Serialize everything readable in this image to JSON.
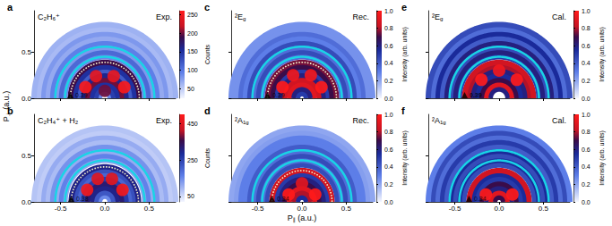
{
  "chart_data": [
    {
      "type": "ring_map",
      "panel": "a",
      "label": {
        "text": "C₂H₆⁺"
      },
      "method": "Exp.",
      "xlim": [
        -0.8,
        0.8
      ],
      "xticks": [
        {
          "value": -0.5,
          "label": "-0.5"
        },
        {
          "value": 0,
          "label": "0.0"
        },
        {
          "value": 0.5,
          "label": "0.5"
        }
      ],
      "ylim": [
        0,
        0.95
      ],
      "yticks": [
        {
          "value": 0,
          "label": "0.0"
        },
        {
          "value": 0.5,
          "label": "0.5"
        }
      ],
      "tick_labels": "y",
      "y_label": {
        "text": "P",
        "sub": "⊥",
        "after": " (a.u.)"
      },
      "rings": [
        [
          0.06,
          90
        ],
        [
          0.1,
          140
        ],
        [
          0.15,
          150
        ],
        [
          0.2,
          200
        ],
        [
          0.25,
          160
        ],
        [
          0.3,
          120
        ],
        [
          0.34,
          150
        ],
        [
          0.39,
          190
        ],
        [
          0.45,
          90
        ],
        [
          0.5,
          110
        ],
        [
          0.55,
          80
        ],
        [
          0.6,
          95
        ],
        [
          0.65,
          70
        ],
        [
          0.7,
          80
        ],
        [
          0.75,
          60
        ],
        [
          0.8,
          65
        ]
      ],
      "spots": [
        [
          -0.22,
          0.12,
          255
        ],
        [
          0.22,
          0.12,
          255
        ],
        [
          -0.1,
          0.24,
          240
        ],
        [
          0.1,
          0.24,
          240
        ],
        [
          0,
          0.08,
          200
        ]
      ],
      "guide_rings": [
        0.45,
        0.56
      ],
      "dotted_ring": 0.39,
      "arrow": 0.39,
      "colorbar": {
        "label": "Counts",
        "range": [
          25,
          260
        ],
        "ticks": [
          50,
          100,
          150,
          200,
          250
        ]
      }
    },
    {
      "type": "ring_map",
      "panel": "b",
      "label": {
        "text": "C₂H₄⁺ + H₂"
      },
      "method": "Exp.",
      "xlim": [
        -0.8,
        0.8
      ],
      "xticks": [
        {
          "value": -0.5,
          "label": "-0.5"
        },
        {
          "value": 0,
          "label": "0.0"
        },
        {
          "value": 0.5,
          "label": "0.5"
        }
      ],
      "ylim": [
        0,
        0.95
      ],
      "yticks": [
        {
          "value": 0,
          "label": "0.0"
        },
        {
          "value": 0.5,
          "label": "0.5"
        }
      ],
      "rings": [
        [
          0.06,
          150
        ],
        [
          0.1,
          220
        ],
        [
          0.15,
          300
        ],
        [
          0.2,
          320
        ],
        [
          0.25,
          260
        ],
        [
          0.3,
          200
        ],
        [
          0.34,
          230
        ],
        [
          0.38,
          300
        ],
        [
          0.45,
          120
        ],
        [
          0.5,
          160
        ],
        [
          0.55,
          110
        ],
        [
          0.6,
          140
        ],
        [
          0.65,
          90
        ],
        [
          0.7,
          110
        ],
        [
          0.75,
          70
        ],
        [
          0.8,
          80
        ]
      ],
      "spots": [
        [
          -0.2,
          0.13,
          480
        ],
        [
          0.2,
          0.13,
          480
        ],
        [
          -0.08,
          0.25,
          450
        ],
        [
          0.08,
          0.25,
          450
        ]
      ],
      "guide_rings": [
        0.45,
        0.56
      ],
      "dotted_ring": 0.38,
      "arrow": 0.38,
      "colorbar": {
        "label": "Counts",
        "range": [
          20,
          500
        ],
        "ticks": [
          50,
          250,
          450
        ]
      }
    },
    {
      "type": "ring_map",
      "panel": "c",
      "label": {
        "text": "²E",
        "sub": "g"
      },
      "method": "Rec.",
      "xlim": [
        -0.8,
        0.8
      ],
      "xticks": [
        {
          "value": -0.5,
          "label": "-0.5"
        },
        {
          "value": 0,
          "label": "0.0"
        },
        {
          "value": 0.5,
          "label": "0.5"
        }
      ],
      "ylim": [
        0,
        0.95
      ],
      "yticks": [
        {
          "value": 0,
          "label": "0.0"
        },
        {
          "value": 0.5,
          "label": "0.5"
        }
      ],
      "tick_labels": false,
      "rings": [
        [
          0.05,
          0.5
        ],
        [
          0.1,
          0.6
        ],
        [
          0.15,
          0.9
        ],
        [
          0.2,
          0.85
        ],
        [
          0.25,
          0.6
        ],
        [
          0.3,
          0.5
        ],
        [
          0.34,
          0.7
        ],
        [
          0.39,
          0.75
        ],
        [
          0.45,
          0.35
        ],
        [
          0.5,
          0.45
        ],
        [
          0.55,
          0.35
        ],
        [
          0.6,
          0.45
        ],
        [
          0.65,
          0.3
        ],
        [
          0.7,
          0.35
        ],
        [
          0.75,
          0.25
        ],
        [
          0.8,
          0.25
        ]
      ],
      "spots": [
        [
          -0.22,
          0.12,
          1.0
        ],
        [
          0.22,
          0.12,
          1.0
        ],
        [
          -0.1,
          0.25,
          0.95
        ],
        [
          0.1,
          0.25,
          0.95
        ]
      ],
      "guide_rings": [
        0.45,
        0.56
      ],
      "dotted_ring": 0.39,
      "arrow": 0.39,
      "colorbar": {
        "label": "Intensity (arb. units)",
        "range": [
          0,
          1
        ],
        "ticks": [
          {
            "value": 0,
            "label": "0.0"
          },
          0.2,
          0.4,
          0.6,
          0.8,
          {
            "value": 1,
            "label": "1.0"
          }
        ]
      }
    },
    {
      "type": "ring_map",
      "panel": "d",
      "label": {
        "text": "²A",
        "sub": "1g"
      },
      "method": "Rec.",
      "xlim": [
        -0.8,
        0.8
      ],
      "xticks": [
        {
          "value": -0.5,
          "label": "-0.5"
        },
        {
          "value": 0,
          "label": "0.0"
        },
        {
          "value": 0.5,
          "label": "0.5"
        }
      ],
      "ylim": [
        0,
        0.95
      ],
      "yticks": [
        {
          "value": 0,
          "label": "0.0"
        },
        {
          "value": 0.5,
          "label": "0.5"
        }
      ],
      "tick_labels": "x",
      "x_label": {
        "text": "P",
        "sub": "∥",
        "after": " (a.u.)"
      },
      "rings": [
        [
          0.05,
          0.55
        ],
        [
          0.1,
          0.8
        ],
        [
          0.15,
          0.9
        ],
        [
          0.2,
          0.7
        ],
        [
          0.25,
          0.6
        ],
        [
          0.3,
          0.5
        ],
        [
          0.34,
          0.85
        ],
        [
          0.4,
          0.45
        ],
        [
          0.45,
          0.35
        ],
        [
          0.5,
          0.45
        ],
        [
          0.55,
          0.35
        ],
        [
          0.6,
          0.4
        ],
        [
          0.65,
          0.3
        ],
        [
          0.7,
          0.3
        ],
        [
          0.75,
          0.22
        ],
        [
          0.8,
          0.2
        ]
      ],
      "spots": [
        [
          -0.15,
          0.08,
          1.0
        ],
        [
          0.15,
          0.08,
          1.0
        ],
        [
          0,
          0.2,
          0.9
        ]
      ],
      "guide_rings": [
        0.45,
        0.56
      ],
      "dotted_ring": 0.34,
      "arrow": 0.34,
      "colorbar": {
        "label": "Intensity (arb. units)",
        "range": [
          0,
          1
        ],
        "ticks": [
          {
            "value": 0,
            "label": "0.0"
          },
          0.2,
          0.4,
          0.6,
          0.8,
          {
            "value": 1,
            "label": "1.0"
          }
        ]
      }
    },
    {
      "type": "ring_map",
      "panel": "e",
      "label": {
        "text": "²E",
        "sub": "g"
      },
      "method": "Cal.",
      "xlim": [
        -0.8,
        0.8
      ],
      "xticks": [
        {
          "value": -0.5,
          "label": "-0.5"
        },
        {
          "value": 0,
          "label": "0.0"
        },
        {
          "value": 0.5,
          "label": "0.5"
        }
      ],
      "ylim": [
        0,
        0.95
      ],
      "yticks": [
        {
          "value": 0,
          "label": "0.0"
        },
        {
          "value": 0.5,
          "label": "0.5"
        }
      ],
      "tick_labels": false,
      "rings": [
        [
          0.1,
          0.6
        ],
        [
          0.15,
          0.9
        ],
        [
          0.2,
          0.7
        ],
        [
          0.25,
          0.55
        ],
        [
          0.3,
          0.6
        ],
        [
          0.35,
          0.8
        ],
        [
          0.39,
          0.85
        ],
        [
          0.45,
          0.5
        ],
        [
          0.5,
          0.6
        ],
        [
          0.55,
          0.45
        ],
        [
          0.6,
          0.6
        ],
        [
          0.65,
          0.4
        ],
        [
          0.7,
          0.55
        ],
        [
          0.75,
          0.35
        ],
        [
          0.8,
          0.45
        ]
      ],
      "spots": [
        [
          -0.2,
          0.2,
          1.0
        ],
        [
          0.2,
          0.2,
          1.0
        ],
        [
          0,
          0.3,
          0.95
        ]
      ],
      "guide_rings": [
        0.45,
        0.56
      ],
      "arrow": 0.39,
      "colorbar": {
        "label": "Intensity (arb. units)",
        "range": [
          0,
          1
        ],
        "ticks": [
          {
            "value": 0,
            "label": "0.0"
          },
          0.2,
          0.4,
          0.6,
          0.8,
          {
            "value": 1,
            "label": "1.0"
          }
        ]
      }
    },
    {
      "type": "ring_map",
      "panel": "f",
      "label": {
        "text": "²A",
        "sub": "1g"
      },
      "method": "Cal.",
      "xlim": [
        -0.8,
        0.8
      ],
      "xticks": [
        {
          "value": -0.5,
          "label": "-0.5"
        },
        {
          "value": 0,
          "label": "0.0"
        },
        {
          "value": 0.5,
          "label": "0.5"
        }
      ],
      "ylim": [
        0,
        0.95
      ],
      "yticks": [
        {
          "value": 0,
          "label": "0.0"
        },
        {
          "value": 0.5,
          "label": "0.5"
        }
      ],
      "tick_labels": "x",
      "rings": [
        [
          0.05,
          0.7
        ],
        [
          0.1,
          0.9
        ],
        [
          0.15,
          0.6
        ],
        [
          0.2,
          0.7
        ],
        [
          0.25,
          0.5
        ],
        [
          0.3,
          0.55
        ],
        [
          0.34,
          0.85
        ],
        [
          0.4,
          0.45
        ],
        [
          0.45,
          0.55
        ],
        [
          0.5,
          0.45
        ],
        [
          0.55,
          0.55
        ],
        [
          0.6,
          0.4
        ],
        [
          0.65,
          0.5
        ],
        [
          0.7,
          0.35
        ],
        [
          0.75,
          0.45
        ],
        [
          0.8,
          0.3
        ]
      ],
      "spots": [
        [
          -0.15,
          0.08,
          1.0
        ],
        [
          0.15,
          0.08,
          1.0
        ]
      ],
      "guide_rings": [
        0.45,
        0.56
      ],
      "arrow": 0.34,
      "colorbar": {
        "label": "Intensity (arb. units)",
        "range": [
          0,
          1
        ],
        "ticks": [
          {
            "value": 0,
            "label": "0.0"
          },
          0.2,
          0.4,
          0.6,
          0.8,
          {
            "value": 1,
            "label": "1.0"
          }
        ]
      }
    }
  ]
}
